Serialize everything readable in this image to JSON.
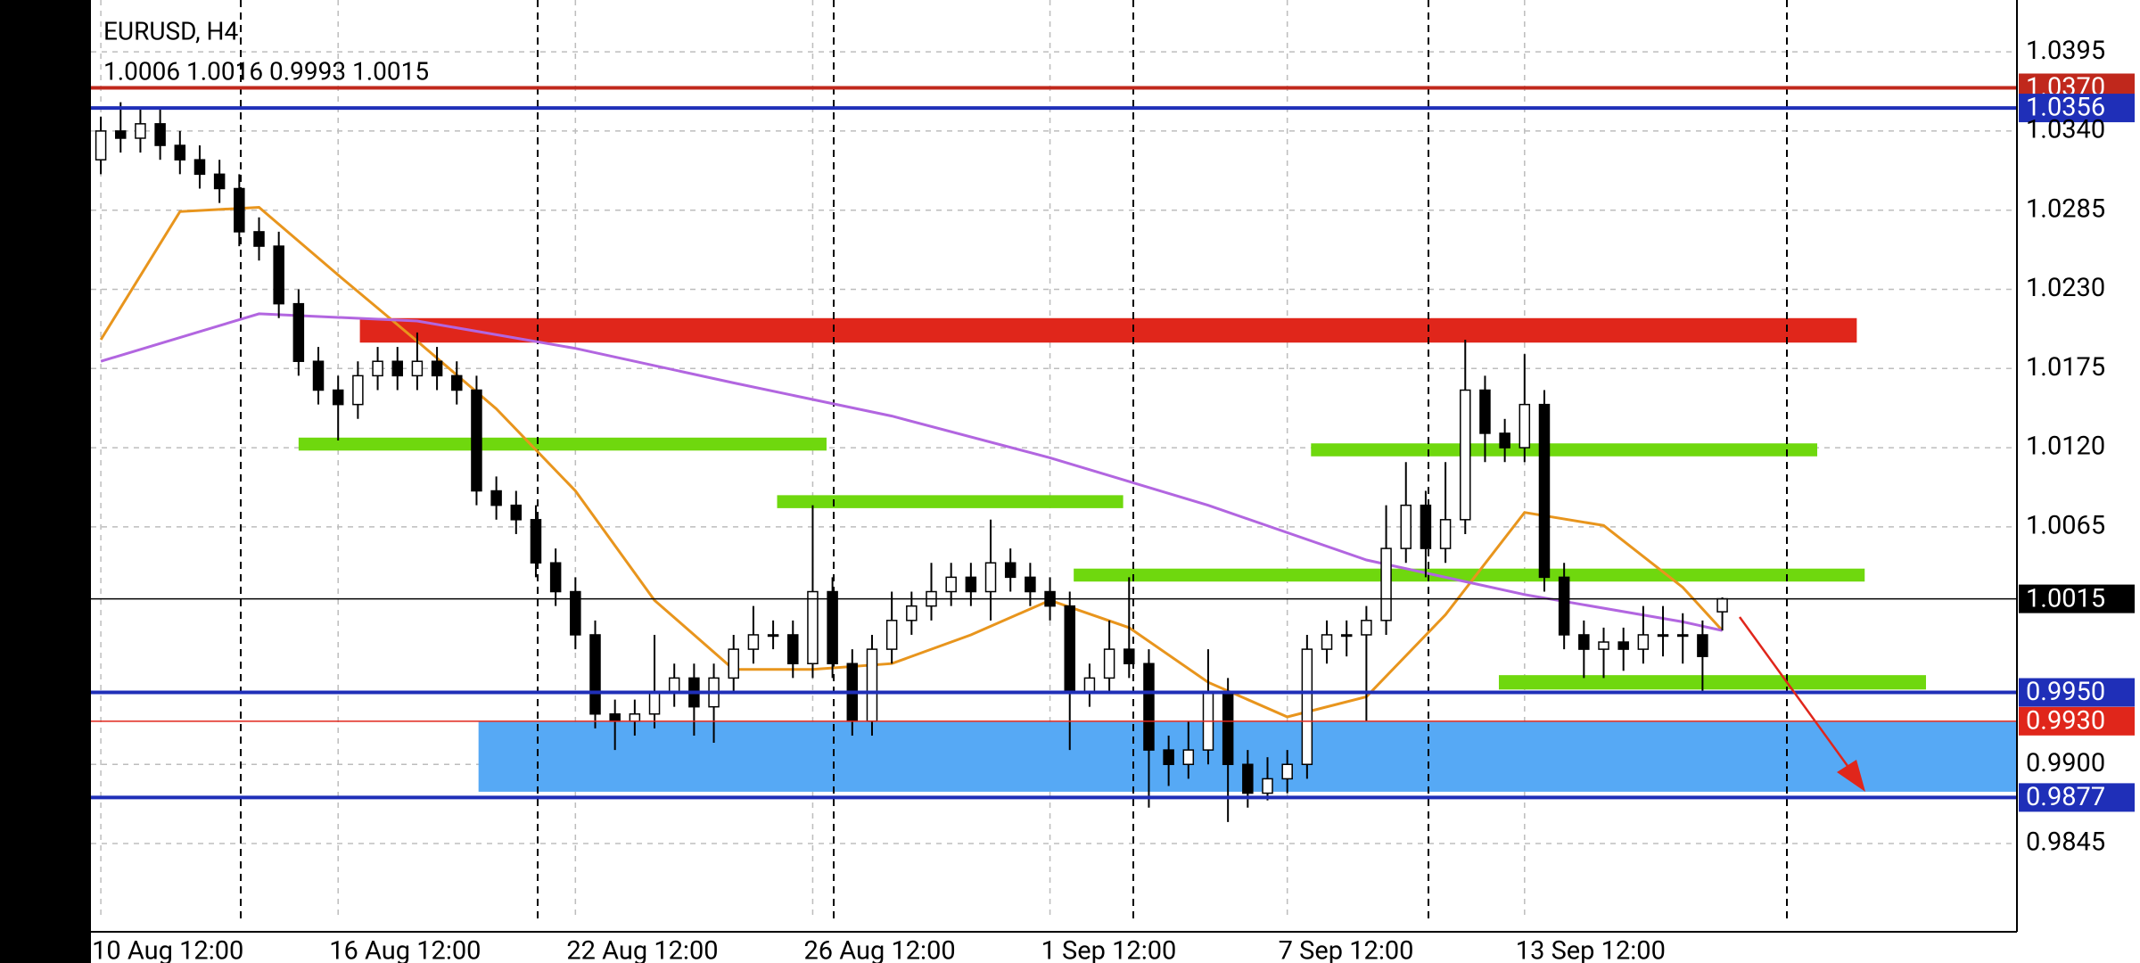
{
  "chart_data": {
    "type": "candlestick",
    "title": "EURUSD, H4",
    "subtitle": "1.0006 1.0016 0.9993 1.0015",
    "xlim": [
      -0.5,
      96.9
    ],
    "ylim": [
      0.9793,
      1.0431
    ],
    "xticks": [
      {
        "value": 0,
        "label": "10 Aug 12:00"
      },
      {
        "value": 12,
        "label": "16 Aug 12:00"
      },
      {
        "value": 24,
        "label": "22 Aug 12:00"
      },
      {
        "value": 36,
        "label": "26 Aug 12:00"
      },
      {
        "value": 48,
        "label": "1 Sep 12:00"
      },
      {
        "value": 60,
        "label": "7 Sep 12:00"
      },
      {
        "value": 72,
        "label": "13 Sep 12:00"
      }
    ],
    "yticks": [
      1.0395,
      {
        "value": 1.034,
        "label": "1.0340"
      },
      1.0285,
      {
        "value": 1.023,
        "label": "1.0230"
      },
      1.0175,
      {
        "value": 1.012,
        "label": "1.0120"
      },
      1.0065,
      {
        "value": 0.99,
        "label": "0.9900"
      },
      0.9845
    ],
    "grid": true,
    "up_color": "#ffffff",
    "down_color": "#000000",
    "open": [
      1.032,
      1.034,
      1.0335,
      1.0345,
      1.033,
      1.032,
      1.031,
      1.03,
      1.027,
      1.026,
      1.022,
      1.018,
      1.016,
      1.015,
      1.017,
      1.018,
      1.017,
      1.018,
      1.017,
      1.016,
      1.009,
      1.008,
      1.007,
      1.004,
      1.002,
      0.999,
      0.9935,
      0.993,
      0.9935,
      0.995,
      0.996,
      0.994,
      0.996,
      0.998,
      0.999,
      0.999,
      0.997,
      1.002,
      0.997,
      0.993,
      0.998,
      1.0,
      1.001,
      1.002,
      1.003,
      1.002,
      1.004,
      1.003,
      1.002,
      1.001,
      0.995,
      0.996,
      0.998,
      0.997,
      0.991,
      0.99,
      0.991,
      0.995,
      0.99,
      0.988,
      0.989,
      0.99,
      0.998,
      0.999,
      0.999,
      1.0,
      1.005,
      1.008,
      1.005,
      1.007,
      1.016,
      1.013,
      1.012,
      1.015,
      1.003,
      0.999,
      0.998,
      0.9985,
      0.998,
      0.999,
      0.999,
      0.999,
      1.0006
    ],
    "high": [
      1.035,
      1.036,
      1.0355,
      1.0355,
      1.034,
      1.033,
      1.032,
      1.031,
      1.028,
      1.027,
      1.023,
      1.019,
      1.017,
      1.018,
      1.019,
      1.019,
      1.02,
      1.019,
      1.018,
      1.017,
      1.01,
      1.009,
      1.008,
      1.005,
      1.003,
      1.0,
      0.9945,
      0.9945,
      0.999,
      0.997,
      0.997,
      0.997,
      0.999,
      1.001,
      1.0,
      1.0,
      1.008,
      1.003,
      0.998,
      0.999,
      1.002,
      1.002,
      1.004,
      1.004,
      1.004,
      1.007,
      1.005,
      1.004,
      1.003,
      1.002,
      0.997,
      1.0,
      1.003,
      0.998,
      0.992,
      0.993,
      0.998,
      0.996,
      0.991,
      0.9905,
      0.991,
      0.999,
      1.0,
      1.0,
      1.001,
      1.008,
      1.011,
      1.009,
      1.011,
      1.0195,
      1.017,
      1.014,
      1.0185,
      1.016,
      1.004,
      1.0,
      0.9995,
      0.9995,
      1.001,
      1.001,
      1.0005,
      1.0,
      1.0016
    ],
    "low": [
      1.031,
      1.0325,
      1.0325,
      1.032,
      1.031,
      1.03,
      1.029,
      1.026,
      1.025,
      1.021,
      1.017,
      1.015,
      1.0125,
      1.014,
      1.016,
      1.016,
      1.016,
      1.016,
      1.015,
      1.008,
      1.007,
      1.006,
      1.003,
      1.001,
      0.998,
      0.9925,
      0.991,
      0.992,
      0.9925,
      0.994,
      0.992,
      0.9915,
      0.995,
      0.997,
      0.998,
      0.996,
      0.996,
      0.996,
      0.992,
      0.992,
      0.997,
      0.999,
      1.0,
      1.001,
      1.001,
      1.0,
      1.002,
      1.001,
      1.0,
      0.991,
      0.994,
      0.995,
      0.996,
      0.987,
      0.9885,
      0.989,
      0.99,
      0.986,
      0.987,
      0.9875,
      0.988,
      0.989,
      0.997,
      0.9975,
      0.993,
      0.999,
      1.004,
      1.003,
      1.004,
      1.006,
      1.011,
      1.011,
      1.011,
      1.002,
      0.998,
      0.996,
      0.996,
      0.9965,
      0.997,
      0.9975,
      0.997,
      0.995,
      0.9993
    ],
    "close": [
      1.034,
      1.0335,
      1.0345,
      1.033,
      1.032,
      1.031,
      1.03,
      1.027,
      1.026,
      1.022,
      1.018,
      1.016,
      1.015,
      1.017,
      1.018,
      1.017,
      1.018,
      1.017,
      1.016,
      1.009,
      1.008,
      1.007,
      1.004,
      1.002,
      0.999,
      0.9935,
      0.993,
      0.9935,
      0.995,
      0.996,
      0.994,
      0.996,
      0.998,
      0.999,
      0.999,
      0.997,
      1.002,
      0.997,
      0.993,
      0.998,
      1.0,
      1.001,
      1.002,
      1.003,
      1.002,
      1.004,
      1.003,
      1.002,
      1.001,
      0.995,
      0.996,
      0.998,
      0.997,
      0.991,
      0.99,
      0.991,
      0.995,
      0.99,
      0.988,
      0.989,
      0.99,
      0.998,
      0.999,
      0.999,
      1.0,
      1.005,
      1.008,
      1.005,
      1.007,
      1.016,
      1.013,
      1.012,
      1.015,
      1.003,
      0.999,
      0.998,
      0.9985,
      0.998,
      0.999,
      0.999,
      0.999,
      0.9975,
      1.0015
    ],
    "moving_averages": [
      {
        "color": "#e8951d",
        "x": [
          0,
          4,
          8,
          12,
          16,
          20,
          24,
          28,
          32,
          36,
          40,
          44,
          48,
          52,
          56,
          60,
          64,
          68,
          72,
          76,
          80,
          82
        ],
        "values": [
          1.0195,
          1.0284,
          1.0287,
          1.024,
          1.0194,
          1.0147,
          1.009,
          1.0014,
          0.9966,
          0.9966,
          0.997,
          0.999,
          1.0014,
          0.9995,
          0.9957,
          0.9933,
          0.9947,
          1.0004,
          1.0075,
          1.0066,
          1.0023,
          0.9993
        ]
      },
      {
        "color": "#b266e0",
        "x": [
          0,
          8,
          16,
          24,
          32,
          40,
          48,
          56,
          64,
          72,
          80,
          82
        ],
        "values": [
          1.018,
          1.0213,
          1.0208,
          1.0189,
          1.0165,
          1.0142,
          1.0113,
          1.008,
          1.0042,
          1.0018,
          0.9999,
          0.9993
        ]
      }
    ],
    "zones": [
      {
        "color": "#e0261b",
        "from": 1.0193,
        "to": 1.021,
        "start": 13.1,
        "end": 88.8
      },
      {
        "color": "#6fd80e",
        "from": 1.0118,
        "to": 1.0127,
        "start": 10.0,
        "end": 36.7
      },
      {
        "color": "#6fd80e",
        "from": 1.0078,
        "to": 1.0087,
        "start": 34.2,
        "end": 51.7
      },
      {
        "color": "#6fd80e",
        "from": 1.0114,
        "to": 1.0123,
        "start": 61.2,
        "end": 86.8
      },
      {
        "color": "#6fd80e",
        "from": 1.0027,
        "to": 1.0036,
        "start": 49.2,
        "end": 89.2
      },
      {
        "color": "#6fd80e",
        "from": 0.9952,
        "to": 0.9962,
        "start": 70.7,
        "end": 92.3
      },
      {
        "color": "#56a9f5",
        "from": 0.9881,
        "to": 0.99295,
        "start": 19.1,
        "end": 96.9
      }
    ],
    "levels": [
      {
        "value": 1.037,
        "label": "1.0370",
        "color": "#c0281c",
        "style": "thick"
      },
      {
        "value": 1.0356,
        "color": "#1f2fb8",
        "style": "thick"
      },
      {
        "value": 1.0015,
        "color": "#000000",
        "style": "thin"
      },
      {
        "value": 0.995,
        "label": "0.9950",
        "color": "#1f2fb8",
        "style": "thick"
      },
      {
        "value": 0.993,
        "label": "0.9930",
        "color": "#e0261b",
        "style": "thin"
      },
      {
        "value": 0.9877,
        "color": "#1f2fb8",
        "style": "thick"
      }
    ]
  }
}
